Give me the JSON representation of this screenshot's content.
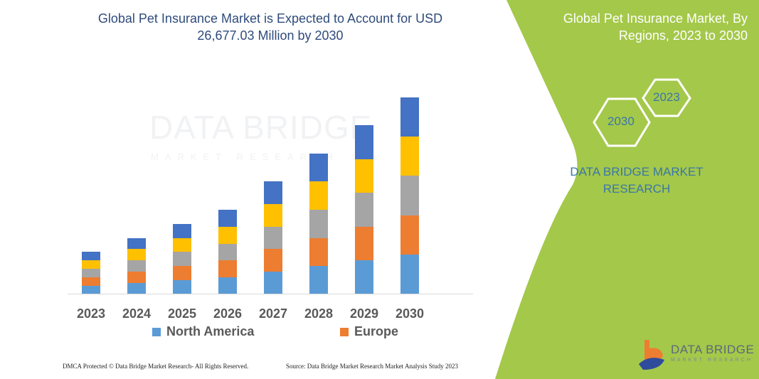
{
  "header": {
    "title": "Global Pet Insurance Market is Expected to Account for USD 26,677.03 Million by 2030"
  },
  "side_panel": {
    "title": "Global Pet Insurance Market, By Regions, 2023 to 2030",
    "hex_years": [
      "2023",
      "2030"
    ],
    "brand": "DATA BRIDGE MARKET RESEARCH",
    "logo_text": "DATA BRIDGE",
    "logo_subtext": "MARKET RESEARCH",
    "background_color": "#a4c84a"
  },
  "watermark": {
    "text": "DATA BRIDGE",
    "subtext": "MARKET RESEARCH"
  },
  "chart_data": {
    "type": "bar",
    "stacked": true,
    "categories": [
      "2023",
      "2024",
      "2025",
      "2026",
      "2027",
      "2028",
      "2029",
      "2030"
    ],
    "series": [
      {
        "name": "North America",
        "color": "#5b9bd5",
        "values": [
          11,
          15,
          19,
          23,
          31,
          39,
          47,
          55
        ]
      },
      {
        "name": "Europe",
        "color": "#ed7d31",
        "values": [
          12,
          16,
          20,
          24,
          32,
          39,
          47,
          55
        ]
      },
      {
        "color": "#a5a5a5",
        "values": [
          12,
          16,
          20,
          23,
          31,
          40,
          48,
          56
        ]
      },
      {
        "color": "#ffc000",
        "values": [
          12,
          16,
          19,
          24,
          32,
          40,
          47,
          55
        ]
      },
      {
        "color": "#4472c4",
        "values": [
          12,
          15,
          20,
          24,
          32,
          39,
          48,
          55
        ]
      }
    ],
    "legend": [
      "North America",
      "Europe"
    ],
    "legend_position": "bottom",
    "y_axis_shown": false,
    "grid": false,
    "xlabel": "",
    "ylabel": ""
  },
  "footer": {
    "left": "DMCA Protected © Data Bridge Market Research-  All Rights Reserved.",
    "right": "Source: Data Bridge Market Research  Market Analysis Study 2023"
  }
}
